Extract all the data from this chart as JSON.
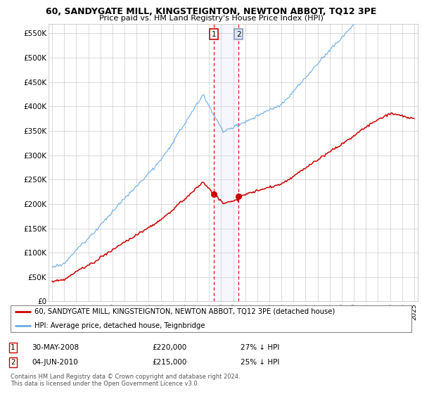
{
  "title": "60, SANDYGATE MILL, KINGSTEIGNTON, NEWTON ABBOT, TQ12 3PE",
  "subtitle": "Price paid vs. HM Land Registry's House Price Index (HPI)",
  "ylabel_ticks": [
    "£0",
    "£50K",
    "£100K",
    "£150K",
    "£200K",
    "£250K",
    "£300K",
    "£350K",
    "£400K",
    "£450K",
    "£500K",
    "£550K"
  ],
  "ytick_values": [
    0,
    50000,
    100000,
    150000,
    200000,
    250000,
    300000,
    350000,
    400000,
    450000,
    500000,
    550000
  ],
  "ylim": [
    0,
    570000
  ],
  "xlim_start": 1994.7,
  "xlim_end": 2025.3,
  "hpi_color": "#6aace6",
  "price_color": "#cc0000",
  "sale1_t": 2008.41,
  "sale2_t": 2010.46,
  "sale1_price": 220000,
  "sale2_price": 215000,
  "legend_line1": "60, SANDYGATE MILL, KINGSTEIGNTON, NEWTON ABBOT, TQ12 3PE (detached house)",
  "legend_line2": "HPI: Average price, detached house, Teignbridge",
  "footer": "Contains HM Land Registry data © Crown copyright and database right 2024.\nThis data is licensed under the Open Government Licence v3.0.",
  "background_color": "#ffffff",
  "grid_color": "#cccccc",
  "xtick_years": [
    1995,
    1996,
    1997,
    1998,
    1999,
    2000,
    2001,
    2002,
    2003,
    2004,
    2005,
    2006,
    2007,
    2008,
    2009,
    2010,
    2011,
    2012,
    2013,
    2014,
    2015,
    2016,
    2017,
    2018,
    2019,
    2020,
    2021,
    2022,
    2023,
    2024,
    2025
  ]
}
